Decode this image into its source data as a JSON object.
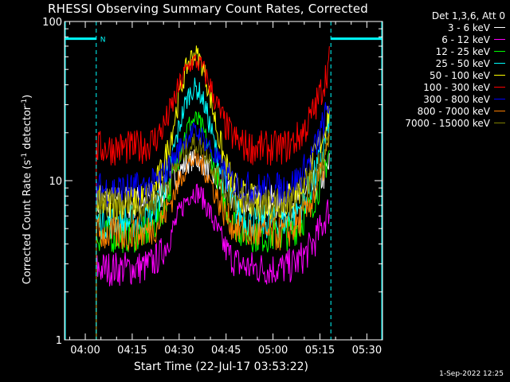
{
  "chart_data": {
    "type": "line",
    "title": "RHESSI Observing Summary Count Rates, Corrected",
    "xlabel": "Start Time (22-Jul-17 03:53:22)",
    "ylabel_main": "Corrected Count Rate (s",
    "ylabel_sup1": "-1",
    "ylabel_mid": " detector",
    "ylabel_sup2": "-1",
    "ylabel_end": ")",
    "yscale": "log",
    "ylim": [
      1,
      100
    ],
    "y_ticks": [
      {
        "value": 1,
        "label": "1"
      },
      {
        "value": 10,
        "label": "10"
      },
      {
        "value": 100,
        "label": "100"
      }
    ],
    "x_ticks": [
      "04:00",
      "04:15",
      "04:30",
      "04:45",
      "05:00",
      "05:15",
      "05:30"
    ],
    "x_tick_minutes": [
      240,
      255,
      270,
      285,
      300,
      315,
      330
    ],
    "xlim_minutes": [
      233.37,
      335.0
    ],
    "legend_header": "Det 1,3,6, Att 0",
    "night_marker": "N",
    "data_gaps_minutes": [
      [
        233.37,
        243.5
      ],
      [
        318.5,
        335.0
      ]
    ],
    "peak_minute": 275,
    "series": [
      {
        "name": "3 - 6 keV",
        "color": "#ffffff",
        "base": 7.3,
        "peak": 13.5,
        "end": 12.5
      },
      {
        "name": "6 - 12 keV",
        "color": "#ff00ff",
        "base": 2.8,
        "peak": 8.5,
        "end": 7.0
      },
      {
        "name": "12 - 25 keV",
        "color": "#00ff00",
        "base": 4.5,
        "peak": 24.0,
        "end": 16.0
      },
      {
        "name": "25 - 50 keV",
        "color": "#00ffff",
        "base": 5.5,
        "peak": 38.0,
        "end": 24.0
      },
      {
        "name": "50 - 100 keV",
        "color": "#ffff00",
        "base": 7.3,
        "peak": 62.0,
        "end": 30.0
      },
      {
        "name": "100 - 300 keV",
        "color": "#ff0000",
        "base": 16.0,
        "peak": 56.0,
        "end": 58.0
      },
      {
        "name": "300 - 800 keV",
        "color": "#0000ff",
        "base": 8.8,
        "peak": 20.0,
        "end": 32.0
      },
      {
        "name": "800 - 7000 keV",
        "color": "#ff8000",
        "base": 4.6,
        "peak": 13.5,
        "end": 18.0
      },
      {
        "name": "7000 - 15000 keV",
        "color": "#808000",
        "base": 7.0,
        "peak": 17.0,
        "end": 19.0
      }
    ]
  },
  "footer_timestamp": "1-Sep-2022 12:25"
}
